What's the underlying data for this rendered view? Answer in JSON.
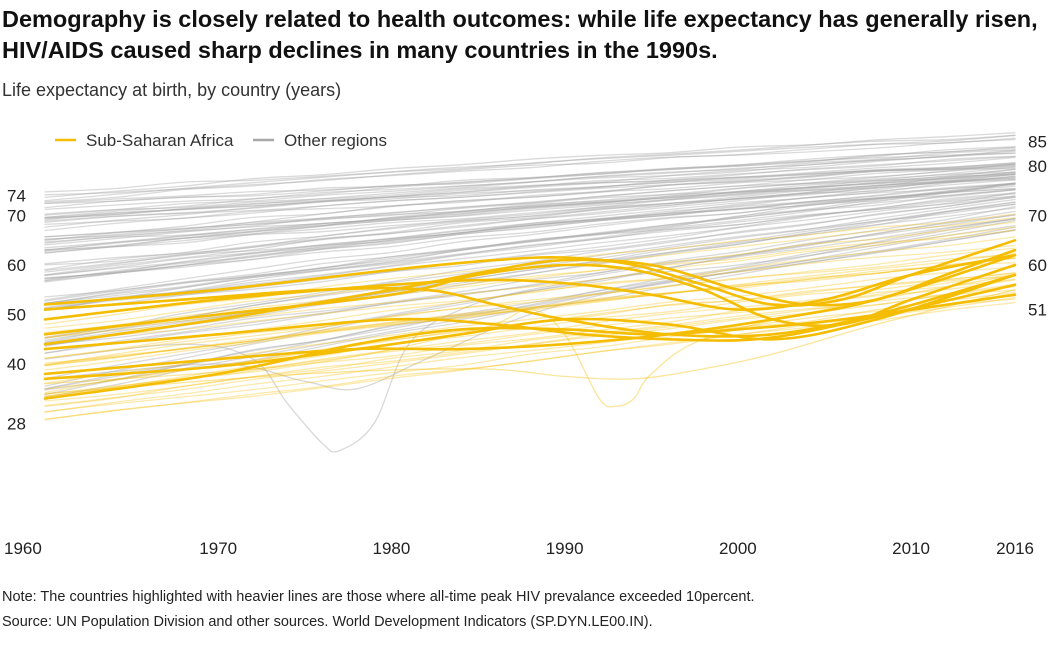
{
  "title": "Demography is closely related to health outcomes: while life expectancy has generally risen, HIV/AIDS caused sharp declines in many countries in the 1990s.",
  "subtitle": "Life expectancy at birth, by country (years)",
  "note": "Note: The countries highlighted with heavier lines are those where all-time peak HIV prevalance exceeded 10percent.",
  "source": "Source: UN Population Division and other sources. World Development Indicators (SP.DYN.LE00.IN).",
  "colors": {
    "ssa": "#F5BD02",
    "other": "#A8A8A8"
  },
  "chart_data": {
    "type": "line",
    "xlim": [
      1960,
      2016
    ],
    "ylim": [
      15,
      88
    ],
    "x_ticks": [
      "1960",
      "1970",
      "1980",
      "1990",
      "2000",
      "2010",
      "2016"
    ],
    "y_left_labels": [
      74,
      70,
      60,
      50,
      40,
      28
    ],
    "y_right_labels": [
      85,
      80,
      70,
      60,
      51
    ],
    "legend": [
      {
        "name": "Sub-Saharan Africa",
        "color": "#F5BD02"
      },
      {
        "name": "Other regions",
        "color": "#A8A8A8"
      }
    ],
    "legend_position": "top-left",
    "other_bands": [
      {
        "start": 73,
        "end": 85,
        "count": 9
      },
      {
        "start": 69,
        "end": 81.5,
        "count": 12
      },
      {
        "start": 64,
        "end": 79,
        "count": 15
      },
      {
        "start": 58,
        "end": 77,
        "count": 14
      },
      {
        "start": 52,
        "end": 75,
        "count": 12
      },
      {
        "start": 44,
        "end": 72,
        "count": 10
      },
      {
        "start": 35,
        "end": 69,
        "count": 7
      }
    ],
    "ssa_light_bands": [
      {
        "start": 46,
        "end": 68,
        "count": 6
      },
      {
        "start": 40,
        "end": 62,
        "count": 8
      },
      {
        "start": 34,
        "end": 58,
        "count": 8
      },
      {
        "start": 30,
        "end": 54,
        "count": 6
      }
    ],
    "ssa_heavy_series": [
      {
        "x": [
          1960,
          1970,
          1980,
          1986,
          1990,
          1994,
          1998,
          2002,
          2006,
          2010,
          2016
        ],
        "y": [
          52,
          55,
          59,
          61,
          61.5,
          60,
          56,
          52,
          53,
          58,
          65
        ]
      },
      {
        "x": [
          1960,
          1970,
          1980,
          1985,
          1990,
          1994,
          1998,
          2002,
          2006,
          2010,
          2016
        ],
        "y": [
          46,
          50,
          54,
          58,
          60,
          59,
          55,
          49,
          48,
          53,
          60
        ]
      },
      {
        "x": [
          1960,
          1970,
          1980,
          1986,
          1990,
          1995,
          2000,
          2004,
          2008,
          2012,
          2016
        ],
        "y": [
          44,
          49,
          55,
          59,
          61,
          60,
          55,
          52,
          53,
          58,
          63
        ]
      },
      {
        "x": [
          1960,
          1970,
          1980,
          1986,
          1991,
          1995,
          2000,
          2005,
          2010,
          2016
        ],
        "y": [
          49,
          53,
          56,
          57,
          56,
          54,
          51,
          53,
          58,
          62
        ]
      },
      {
        "x": [
          1960,
          1968,
          1976,
          1982,
          1986,
          1990,
          1996,
          2002,
          2008,
          2016
        ],
        "y": [
          51,
          53,
          55,
          55,
          52,
          49,
          46,
          46,
          50,
          58
        ]
      },
      {
        "x": [
          1960,
          1970,
          1978,
          1984,
          1990,
          1996,
          2002,
          2008,
          2016
        ],
        "y": [
          37,
          39.5,
          43,
          46,
          49,
          48,
          45,
          49,
          58
        ]
      },
      {
        "x": [
          1960,
          1970,
          1978,
          1984,
          1990,
          1995,
          2000,
          2006,
          2016
        ],
        "y": [
          33,
          38,
          44,
          47,
          47,
          46,
          47,
          49,
          54
        ]
      },
      {
        "x": [
          1960,
          1970,
          1980,
          1986,
          1991,
          1996,
          2001,
          2006,
          2016
        ],
        "y": [
          43,
          46,
          49,
          48,
          46,
          45,
          45,
          48,
          56
        ]
      },
      {
        "x": [
          1960,
          1970,
          1978,
          1984,
          1990,
          1996,
          2002,
          2008,
          2016
        ],
        "y": [
          38,
          41,
          43,
          43,
          44,
          46,
          49,
          53,
          62
        ]
      }
    ],
    "dip_series": [
      {
        "type": "other",
        "x": [
          1960,
          1968,
          1972,
          1974,
          1976,
          1977,
          1979,
          1981,
          1984,
          1988,
          1994,
          2000,
          2008,
          2016
        ],
        "y": [
          41,
          44,
          41,
          32,
          24,
          22.5,
          28,
          44,
          51,
          55,
          58,
          60,
          64,
          69
        ]
      },
      {
        "type": "other",
        "x": [
          1960,
          1970,
          1975,
          1978,
          1982,
          1988,
          1995,
          2005,
          2016
        ],
        "y": [
          37,
          40,
          36.5,
          35,
          41,
          50,
          56,
          61,
          67
        ]
      },
      {
        "type": "ssa",
        "x": [
          1960,
          1975,
          1985,
          1988,
          1990,
          1992,
          1993,
          1994,
          1995,
          1998,
          2005,
          2016
        ],
        "y": [
          36,
          40,
          47,
          51,
          46,
          33,
          31.5,
          33,
          38,
          45,
          51,
          58
        ]
      },
      {
        "type": "ssa",
        "x": [
          1960,
          1975,
          1985,
          1990,
          1994,
          1998,
          2002,
          2008,
          2016
        ],
        "y": [
          34,
          38,
          39,
          37.5,
          37,
          39,
          42,
          48,
          55
        ]
      }
    ]
  }
}
